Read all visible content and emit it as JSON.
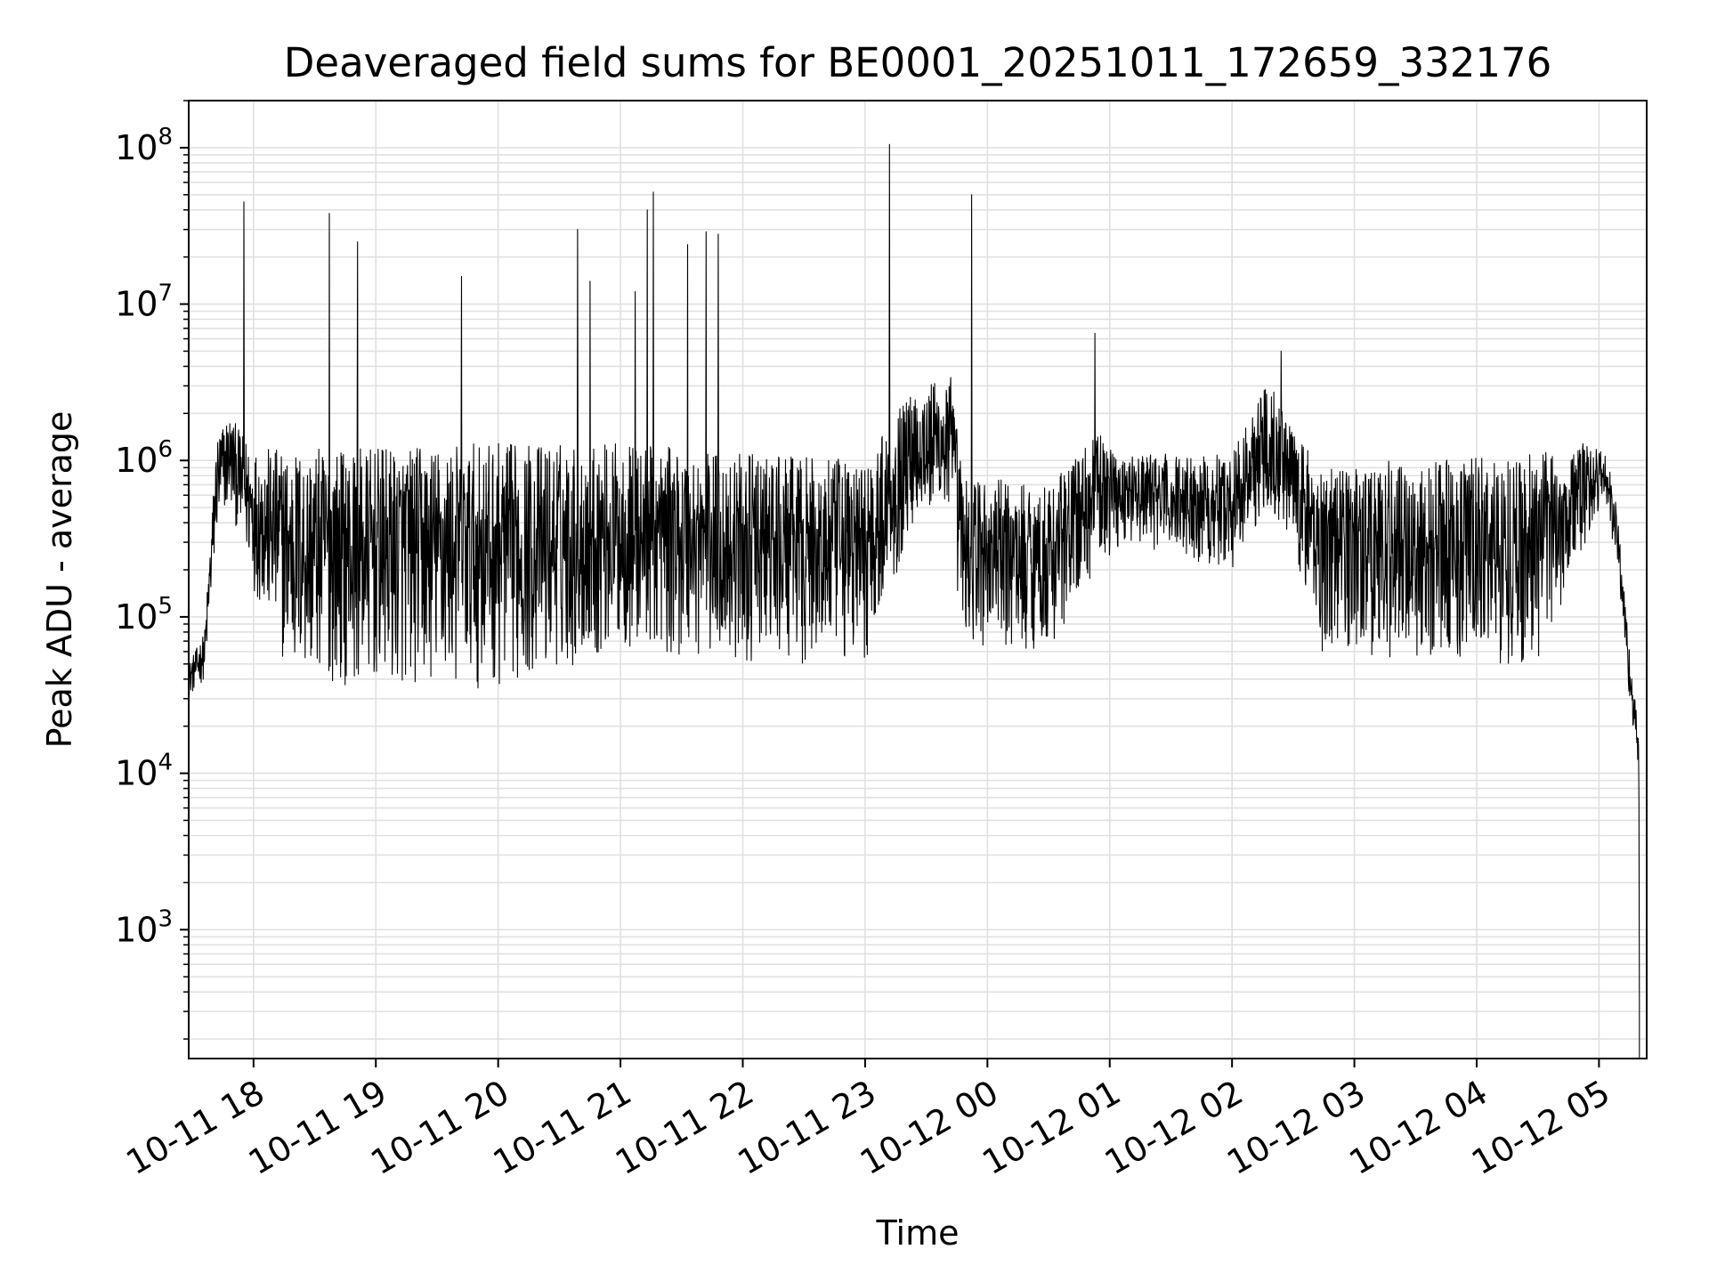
{
  "chart_data": {
    "type": "line",
    "title": "Deaveraged field sums for BE0001_20251011_172659_332176",
    "xlabel": "Time",
    "ylabel": "Peak ADU - average",
    "yscale": "log",
    "ylim": [
      150,
      200000000
    ],
    "xlim_hours": [
      17.47,
      29.39
    ],
    "x_start": "2025-10-11 17:28",
    "x_end": "2025-10-12 05:23",
    "grid": true,
    "line_color": "#000000",
    "grid_color": "#e0e0e0",
    "x_ticks": [
      {
        "label": "10-11 18",
        "hour": 18
      },
      {
        "label": "10-11 19",
        "hour": 19
      },
      {
        "label": "10-11 20",
        "hour": 20
      },
      {
        "label": "10-11 21",
        "hour": 21
      },
      {
        "label": "10-11 22",
        "hour": 22
      },
      {
        "label": "10-11 23",
        "hour": 23
      },
      {
        "label": "10-12 00",
        "hour": 24
      },
      {
        "label": "10-12 01",
        "hour": 25
      },
      {
        "label": "10-12 02",
        "hour": 26
      },
      {
        "label": "10-12 03",
        "hour": 27
      },
      {
        "label": "10-12 04",
        "hour": 28
      },
      {
        "label": "10-12 05",
        "hour": 29
      }
    ],
    "y_ticks": [
      {
        "base": "10",
        "exp": "3",
        "value": 1000
      },
      {
        "base": "10",
        "exp": "4",
        "value": 10000
      },
      {
        "base": "10",
        "exp": "5",
        "value": 100000
      },
      {
        "base": "10",
        "exp": "6",
        "value": 1000000
      },
      {
        "base": "10",
        "exp": "7",
        "value": 10000000
      },
      {
        "base": "10",
        "exp": "8",
        "value": 100000000
      }
    ],
    "envelope": [
      {
        "t": 17.47,
        "lo": 30000,
        "hi": 50000
      },
      {
        "t": 17.6,
        "lo": 40000,
        "hi": 80000
      },
      {
        "t": 17.7,
        "lo": 300000,
        "hi": 1500000
      },
      {
        "t": 17.8,
        "lo": 500000,
        "hi": 2000000
      },
      {
        "t": 17.9,
        "lo": 300000,
        "hi": 1500000
      },
      {
        "t": 18.0,
        "lo": 150000,
        "hi": 1200000
      },
      {
        "t": 18.3,
        "lo": 40000,
        "hi": 1200000
      },
      {
        "t": 19.0,
        "lo": 35000,
        "hi": 1200000
      },
      {
        "t": 20.0,
        "lo": 35000,
        "hi": 1300000
      },
      {
        "t": 21.0,
        "lo": 60000,
        "hi": 1300000
      },
      {
        "t": 22.0,
        "lo": 50000,
        "hi": 1100000
      },
      {
        "t": 23.0,
        "lo": 50000,
        "hi": 1000000
      },
      {
        "t": 23.4,
        "lo": 400000,
        "hi": 3000000
      },
      {
        "t": 23.7,
        "lo": 400000,
        "hi": 3500000
      },
      {
        "t": 23.8,
        "lo": 60000,
        "hi": 800000
      },
      {
        "t": 24.5,
        "lo": 60000,
        "hi": 700000
      },
      {
        "t": 24.9,
        "lo": 200000,
        "hi": 1500000
      },
      {
        "t": 25.1,
        "lo": 300000,
        "hi": 1100000
      },
      {
        "t": 26.0,
        "lo": 200000,
        "hi": 1100000
      },
      {
        "t": 26.3,
        "lo": 500000,
        "hi": 3500000
      },
      {
        "t": 26.5,
        "lo": 300000,
        "hi": 1500000
      },
      {
        "t": 26.7,
        "lo": 60000,
        "hi": 1000000
      },
      {
        "t": 27.5,
        "lo": 50000,
        "hi": 1000000
      },
      {
        "t": 28.5,
        "lo": 50000,
        "hi": 1100000
      },
      {
        "t": 28.9,
        "lo": 300000,
        "hi": 1300000
      },
      {
        "t": 29.05,
        "lo": 500000,
        "hi": 1200000
      },
      {
        "t": 29.15,
        "lo": 200000,
        "hi": 500000
      },
      {
        "t": 29.25,
        "lo": 30000,
        "hi": 60000
      },
      {
        "t": 29.32,
        "lo": 10000,
        "hi": 20000
      },
      {
        "t": 29.33,
        "lo": 150,
        "hi": 10000
      }
    ],
    "spikes": [
      {
        "t": 17.92,
        "value": 45000000
      },
      {
        "t": 18.62,
        "value": 38000000
      },
      {
        "t": 18.85,
        "value": 25000000
      },
      {
        "t": 19.7,
        "value": 15000000
      },
      {
        "t": 20.65,
        "value": 30000000
      },
      {
        "t": 20.75,
        "value": 14000000
      },
      {
        "t": 21.12,
        "value": 12000000
      },
      {
        "t": 21.22,
        "value": 40000000
      },
      {
        "t": 21.27,
        "value": 52000000
      },
      {
        "t": 21.55,
        "value": 24000000
      },
      {
        "t": 21.7,
        "value": 29000000
      },
      {
        "t": 21.8,
        "value": 28000000
      },
      {
        "t": 23.2,
        "value": 105000000
      },
      {
        "t": 23.87,
        "value": 50000000
      },
      {
        "t": 24.88,
        "value": 6500000
      },
      {
        "t": 26.4,
        "value": 5000000
      }
    ]
  }
}
